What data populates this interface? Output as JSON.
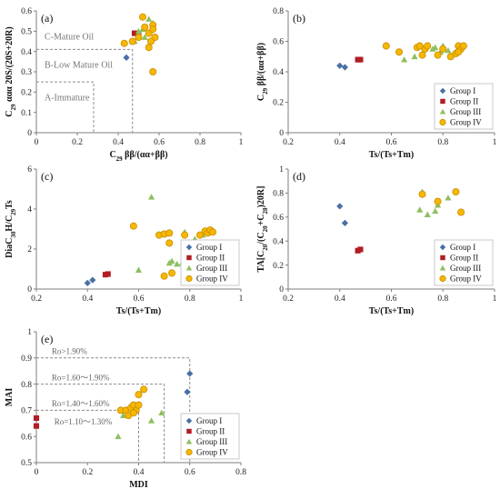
{
  "colors": {
    "group_i": "#4a6fa5",
    "group_ii": "#b01e23",
    "group_iii": "#8fbf60",
    "group_iv": "#f5b800",
    "group_iv_edge": "#c98a00",
    "axis": "#7f7f7f",
    "guide": "#8c8c8c"
  },
  "chart_data": [
    {
      "id": "a",
      "type": "scatter",
      "panel_label": "(a)",
      "xlabel": "C29 ββ/(αα+ββ)",
      "ylabel": "C29 ααα 20S/(20S+20R)",
      "xlim": [
        0,
        1.0
      ],
      "ylim": [
        0,
        0.6
      ],
      "xticks": [
        "0",
        "0.2",
        "0.4",
        "0.6",
        "0.8",
        "1"
      ],
      "yticks": [
        "0",
        "0.1",
        "0.2",
        "0.3",
        "0.4",
        "0.5",
        "0.6"
      ],
      "annotations": [
        "C-Mature Oil",
        "B-Low Mature Oil",
        "A-Immature"
      ],
      "series": [
        {
          "name": "Group I",
          "marker": "diamond",
          "points": [
            [
              0.44,
              0.37
            ]
          ]
        },
        {
          "name": "Group II",
          "marker": "square",
          "points": [
            [
              0.48,
              0.49
            ],
            [
              0.5,
              0.49
            ]
          ]
        },
        {
          "name": "Group III",
          "marker": "triangle",
          "points": [
            [
              0.48,
              0.45
            ],
            [
              0.5,
              0.5
            ],
            [
              0.52,
              0.51
            ],
            [
              0.53,
              0.47
            ],
            [
              0.55,
              0.56
            ],
            [
              0.57,
              0.54
            ]
          ]
        },
        {
          "name": "Group IV",
          "marker": "circle",
          "points": [
            [
              0.43,
              0.44
            ],
            [
              0.47,
              0.45
            ],
            [
              0.5,
              0.47
            ],
            [
              0.52,
              0.57
            ],
            [
              0.53,
              0.52
            ],
            [
              0.55,
              0.49
            ],
            [
              0.55,
              0.42
            ],
            [
              0.57,
              0.53
            ],
            [
              0.57,
              0.51
            ],
            [
              0.58,
              0.47
            ],
            [
              0.57,
              0.3
            ],
            [
              0.56,
              0.45
            ]
          ]
        }
      ]
    },
    {
      "id": "b",
      "type": "scatter",
      "panel_label": "(b)",
      "xlabel": "Ts/(Ts+Tm)",
      "ylabel": "C29 ββ/(αα+ββ)",
      "xlim": [
        0.2,
        1.0
      ],
      "ylim": [
        0,
        0.8
      ],
      "xticks": [
        "0.2",
        "0.4",
        "0.6",
        "0.8",
        "1"
      ],
      "yticks": [
        "0",
        "0.2",
        "0.4",
        "0.6",
        "0.8"
      ],
      "legend": {
        "position": "bottom-right",
        "entries": [
          "Group I",
          "Group II",
          "Group III",
          "Group IV"
        ]
      },
      "series": [
        {
          "name": "Group I",
          "marker": "diamond",
          "points": [
            [
              0.4,
              0.44
            ],
            [
              0.42,
              0.43
            ]
          ]
        },
        {
          "name": "Group II",
          "marker": "square",
          "points": [
            [
              0.47,
              0.48
            ],
            [
              0.48,
              0.48
            ]
          ]
        },
        {
          "name": "Group III",
          "marker": "triangle",
          "points": [
            [
              0.65,
              0.48
            ],
            [
              0.69,
              0.5
            ],
            [
              0.73,
              0.55
            ],
            [
              0.76,
              0.55
            ],
            [
              0.77,
              0.56
            ],
            [
              0.79,
              0.53
            ],
            [
              0.8,
              0.57
            ],
            [
              0.82,
              0.54
            ],
            [
              0.85,
              0.53
            ]
          ]
        },
        {
          "name": "Group IV",
          "marker": "circle",
          "points": [
            [
              0.58,
              0.57
            ],
            [
              0.63,
              0.53
            ],
            [
              0.7,
              0.56
            ],
            [
              0.72,
              0.51
            ],
            [
              0.73,
              0.55
            ],
            [
              0.74,
              0.57
            ],
            [
              0.78,
              0.51
            ],
            [
              0.8,
              0.55
            ],
            [
              0.83,
              0.5
            ],
            [
              0.85,
              0.52
            ],
            [
              0.86,
              0.57
            ],
            [
              0.87,
              0.55
            ],
            [
              0.88,
              0.57
            ],
            [
              0.86,
              0.53
            ],
            [
              0.71,
              0.57
            ]
          ]
        }
      ]
    },
    {
      "id": "c",
      "type": "scatter",
      "panel_label": "(c)",
      "xlabel": "Ts/(Ts+Tm)",
      "ylabel": "DiaC30H/C29Ts",
      "xlim": [
        0.2,
        1.0
      ],
      "ylim": [
        0,
        6
      ],
      "xticks": [
        "0.2",
        "0.4",
        "0.6",
        "0.8",
        "1"
      ],
      "yticks": [
        "0",
        "2",
        "4",
        "6"
      ],
      "legend": {
        "position": "bottom-right",
        "entries": [
          "Group I",
          "Group II",
          "Group III",
          "Group IV"
        ]
      },
      "series": [
        {
          "name": "Group I",
          "marker": "diamond",
          "points": [
            [
              0.4,
              0.3
            ],
            [
              0.42,
              0.45
            ]
          ]
        },
        {
          "name": "Group II",
          "marker": "square",
          "points": [
            [
              0.47,
              0.72
            ],
            [
              0.48,
              0.75
            ]
          ]
        },
        {
          "name": "Group III",
          "marker": "triangle",
          "points": [
            [
              0.65,
              4.6
            ],
            [
              0.6,
              0.95
            ],
            [
              0.72,
              1.3
            ],
            [
              0.73,
              1.4
            ],
            [
              0.75,
              1.25
            ],
            [
              0.77,
              1.3
            ],
            [
              0.78,
              1.7
            ],
            [
              0.8,
              2.3
            ],
            [
              0.82,
              2.5
            ],
            [
              0.85,
              2.7
            ],
            [
              0.78,
              2.85
            ]
          ]
        },
        {
          "name": "Group IV",
          "marker": "circle",
          "points": [
            [
              0.58,
              3.15
            ],
            [
              0.68,
              2.7
            ],
            [
              0.7,
              2.75
            ],
            [
              0.72,
              2.8
            ],
            [
              0.72,
              2.3
            ],
            [
              0.78,
              2.7
            ],
            [
              0.8,
              1.8
            ],
            [
              0.84,
              2.7
            ],
            [
              0.86,
              2.9
            ],
            [
              0.87,
              2.8
            ],
            [
              0.88,
              2.95
            ],
            [
              0.89,
              2.85
            ],
            [
              0.7,
              0.65
            ],
            [
              0.73,
              0.8
            ],
            [
              0.79,
              1.75
            ]
          ]
        }
      ]
    },
    {
      "id": "d",
      "type": "scatter",
      "panel_label": "(d)",
      "xlabel": "Ts/(Ts+Tm)",
      "ylabel": "TA[C20/(C20+C28)20R]",
      "xlim": [
        0.2,
        1.0
      ],
      "ylim": [
        0,
        1.0
      ],
      "xticks": [
        "0.2",
        "0.4",
        "0.6",
        "0.8",
        "1"
      ],
      "yticks": [
        "0",
        "0.2",
        "0.4",
        "0.6",
        "0.8",
        "1"
      ],
      "legend": {
        "position": "bottom-right",
        "entries": [
          "Group I",
          "Group II",
          "Group III",
          "Group IV"
        ]
      },
      "series": [
        {
          "name": "Group I",
          "marker": "diamond",
          "points": [
            [
              0.4,
              0.69
            ],
            [
              0.42,
              0.55
            ]
          ]
        },
        {
          "name": "Group II",
          "marker": "square",
          "points": [
            [
              0.47,
              0.32
            ],
            [
              0.48,
              0.33
            ]
          ]
        },
        {
          "name": "Group III",
          "marker": "triangle",
          "points": [
            [
              0.71,
              0.66
            ],
            [
              0.72,
              0.81
            ],
            [
              0.74,
              0.62
            ],
            [
              0.77,
              0.65
            ],
            [
              0.78,
              0.7
            ],
            [
              0.82,
              0.76
            ]
          ]
        },
        {
          "name": "Group IV",
          "marker": "circle",
          "points": [
            [
              0.72,
              0.79
            ],
            [
              0.78,
              0.73
            ],
            [
              0.85,
              0.81
            ],
            [
              0.87,
              0.64
            ]
          ]
        }
      ]
    },
    {
      "id": "e",
      "type": "scatter",
      "panel_label": "(e)",
      "xlabel": "MDI",
      "ylabel": "MAI",
      "xlim": [
        0,
        0.8
      ],
      "ylim": [
        0.5,
        1.0
      ],
      "xticks": [
        "0",
        "0.2",
        "0.4",
        "0.6",
        "0.8"
      ],
      "yticks": [
        "0.5",
        "0.6",
        "0.7",
        "0.8",
        "0.9",
        "1"
      ],
      "annotations": [
        "Ro>1.90%",
        "Ro=1.60～1.90%",
        "Ro=1.40～1.60%",
        "Ro=1.10～1.30%"
      ],
      "legend": {
        "position": "bottom-right",
        "entries": [
          "Group I",
          "Group II",
          "Group III",
          "Group IV"
        ]
      },
      "series": [
        {
          "name": "Group I",
          "marker": "diamond",
          "points": [
            [
              0.6,
              0.84
            ],
            [
              0.59,
              0.77
            ]
          ]
        },
        {
          "name": "Group II",
          "marker": "square",
          "points": [
            [
              0.0,
              0.67
            ],
            [
              0.0,
              0.64
            ]
          ]
        },
        {
          "name": "Group III",
          "marker": "triangle",
          "points": [
            [
              0.32,
              0.6
            ],
            [
              0.34,
              0.68
            ],
            [
              0.45,
              0.66
            ],
            [
              0.49,
              0.69
            ]
          ]
        },
        {
          "name": "Group IV",
          "marker": "circle",
          "points": [
            [
              0.33,
              0.7
            ],
            [
              0.35,
              0.7
            ],
            [
              0.36,
              0.68
            ],
            [
              0.37,
              0.71
            ],
            [
              0.38,
              0.72
            ],
            [
              0.39,
              0.7
            ],
            [
              0.4,
              0.72
            ],
            [
              0.4,
              0.76
            ],
            [
              0.42,
              0.78
            ],
            [
              0.38,
              0.69
            ]
          ]
        }
      ]
    }
  ]
}
